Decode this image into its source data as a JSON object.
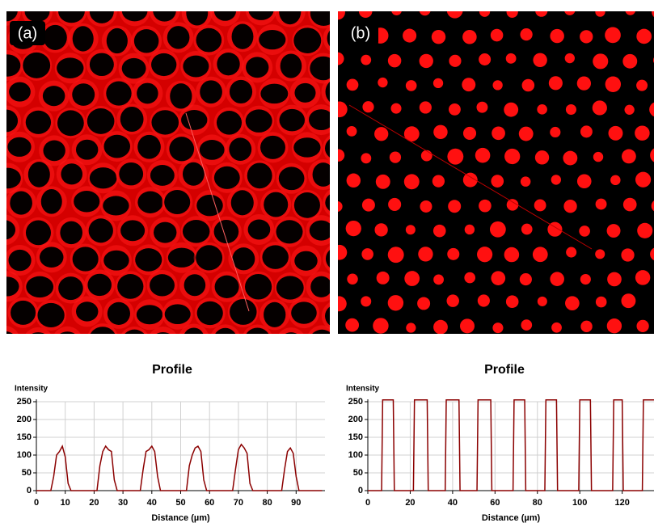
{
  "panels": [
    "(a)",
    "(b)"
  ],
  "chart_data": [
    {
      "type": "line",
      "title": "Profile",
      "y_label": "Intensity",
      "x_label": "Distance (µm)",
      "color": "#8b0000",
      "grid": true,
      "xlim": [
        0,
        100
      ],
      "xticks": [
        0,
        10,
        20,
        30,
        40,
        50,
        60,
        70,
        80,
        90
      ],
      "ylim": [
        0,
        250
      ],
      "yticks": [
        0,
        50,
        100,
        150,
        200,
        250
      ],
      "x": [
        0,
        1,
        2,
        3,
        4,
        5,
        6,
        7,
        8,
        9,
        10,
        11,
        12,
        13,
        14,
        15,
        16,
        17,
        18,
        19,
        20,
        21,
        22,
        23,
        24,
        25,
        26,
        27,
        28,
        29,
        30,
        31,
        32,
        33,
        34,
        35,
        36,
        37,
        38,
        39,
        40,
        41,
        42,
        43,
        44,
        45,
        46,
        47,
        48,
        49,
        50,
        51,
        52,
        53,
        54,
        55,
        56,
        57,
        58,
        59,
        60,
        61,
        62,
        63,
        64,
        65,
        66,
        67,
        68,
        69,
        70,
        71,
        72,
        73,
        74,
        75,
        76,
        77,
        78,
        79,
        80,
        81,
        82,
        83,
        84,
        85,
        86,
        87,
        88,
        89,
        90,
        91,
        92,
        93,
        94,
        95,
        96,
        97,
        98,
        99
      ],
      "values": [
        0,
        0,
        0,
        0,
        0,
        0,
        40,
        100,
        110,
        125,
        95,
        20,
        0,
        0,
        0,
        0,
        0,
        0,
        0,
        0,
        0,
        0,
        70,
        110,
        125,
        115,
        110,
        30,
        0,
        0,
        0,
        0,
        0,
        0,
        0,
        0,
        0,
        60,
        110,
        115,
        125,
        110,
        40,
        0,
        0,
        0,
        0,
        0,
        0,
        0,
        0,
        0,
        0,
        70,
        100,
        120,
        125,
        110,
        30,
        0,
        0,
        0,
        0,
        0,
        0,
        0,
        0,
        0,
        0,
        60,
        115,
        130,
        120,
        105,
        20,
        0,
        0,
        0,
        0,
        0,
        0,
        0,
        0,
        0,
        0,
        0,
        60,
        110,
        120,
        105,
        40,
        0,
        0,
        0,
        0,
        0,
        0,
        0,
        0,
        0
      ]
    },
    {
      "type": "line",
      "title": "Profile",
      "y_label": "Intensity",
      "x_label": "Distance (µm)",
      "color": "#8b0000",
      "grid": true,
      "xlim": [
        0,
        135
      ],
      "xticks": [
        0,
        20,
        40,
        60,
        80,
        100,
        120
      ],
      "ylim": [
        0,
        250
      ],
      "yticks": [
        0,
        50,
        100,
        150,
        200,
        250
      ],
      "x": [
        0,
        6.5,
        7,
        12,
        12.5,
        21.5,
        22,
        28,
        28.5,
        36.5,
        37,
        43,
        43.5,
        51.5,
        52,
        58,
        58.5,
        68.5,
        69,
        74,
        74.5,
        83.5,
        84,
        89,
        89.5,
        99.5,
        100,
        105,
        105.5,
        115.5,
        116,
        120,
        120.5,
        129.5,
        130,
        135
      ],
      "values": [
        0,
        0,
        255,
        255,
        0,
        0,
        255,
        255,
        0,
        0,
        255,
        255,
        0,
        0,
        255,
        255,
        0,
        0,
        255,
        255,
        0,
        0,
        255,
        255,
        0,
        0,
        255,
        255,
        0,
        0,
        255,
        255,
        0,
        0,
        255,
        255
      ]
    }
  ]
}
